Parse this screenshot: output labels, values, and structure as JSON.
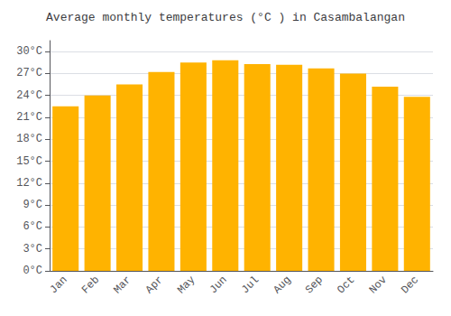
{
  "chart_data": {
    "type": "bar",
    "title": "Average monthly temperatures (°C ) in Casambalangan",
    "categories": [
      "Jan",
      "Feb",
      "Mar",
      "Apr",
      "May",
      "Jun",
      "Jul",
      "Aug",
      "Sep",
      "Oct",
      "Nov",
      "Dec"
    ],
    "values": [
      22.5,
      24.0,
      25.5,
      27.2,
      28.5,
      28.8,
      28.3,
      28.2,
      27.7,
      27.0,
      25.2,
      23.8
    ],
    "color": "#FFB300",
    "ylim": [
      0,
      31.5
    ],
    "yticks": [
      {
        "value": 0,
        "label": "0°C"
      },
      {
        "value": 3,
        "label": "3°C"
      },
      {
        "value": 6,
        "label": "6°C"
      },
      {
        "value": 9,
        "label": "9°C"
      },
      {
        "value": 12,
        "label": "12°C"
      },
      {
        "value": 15,
        "label": "15°C"
      },
      {
        "value": 18,
        "label": "18°C"
      },
      {
        "value": 21,
        "label": "21°C"
      },
      {
        "value": 24,
        "label": "24°C"
      },
      {
        "value": 27,
        "label": "27°C"
      },
      {
        "value": 30,
        "label": "30°C"
      }
    ],
    "grid": true
  }
}
